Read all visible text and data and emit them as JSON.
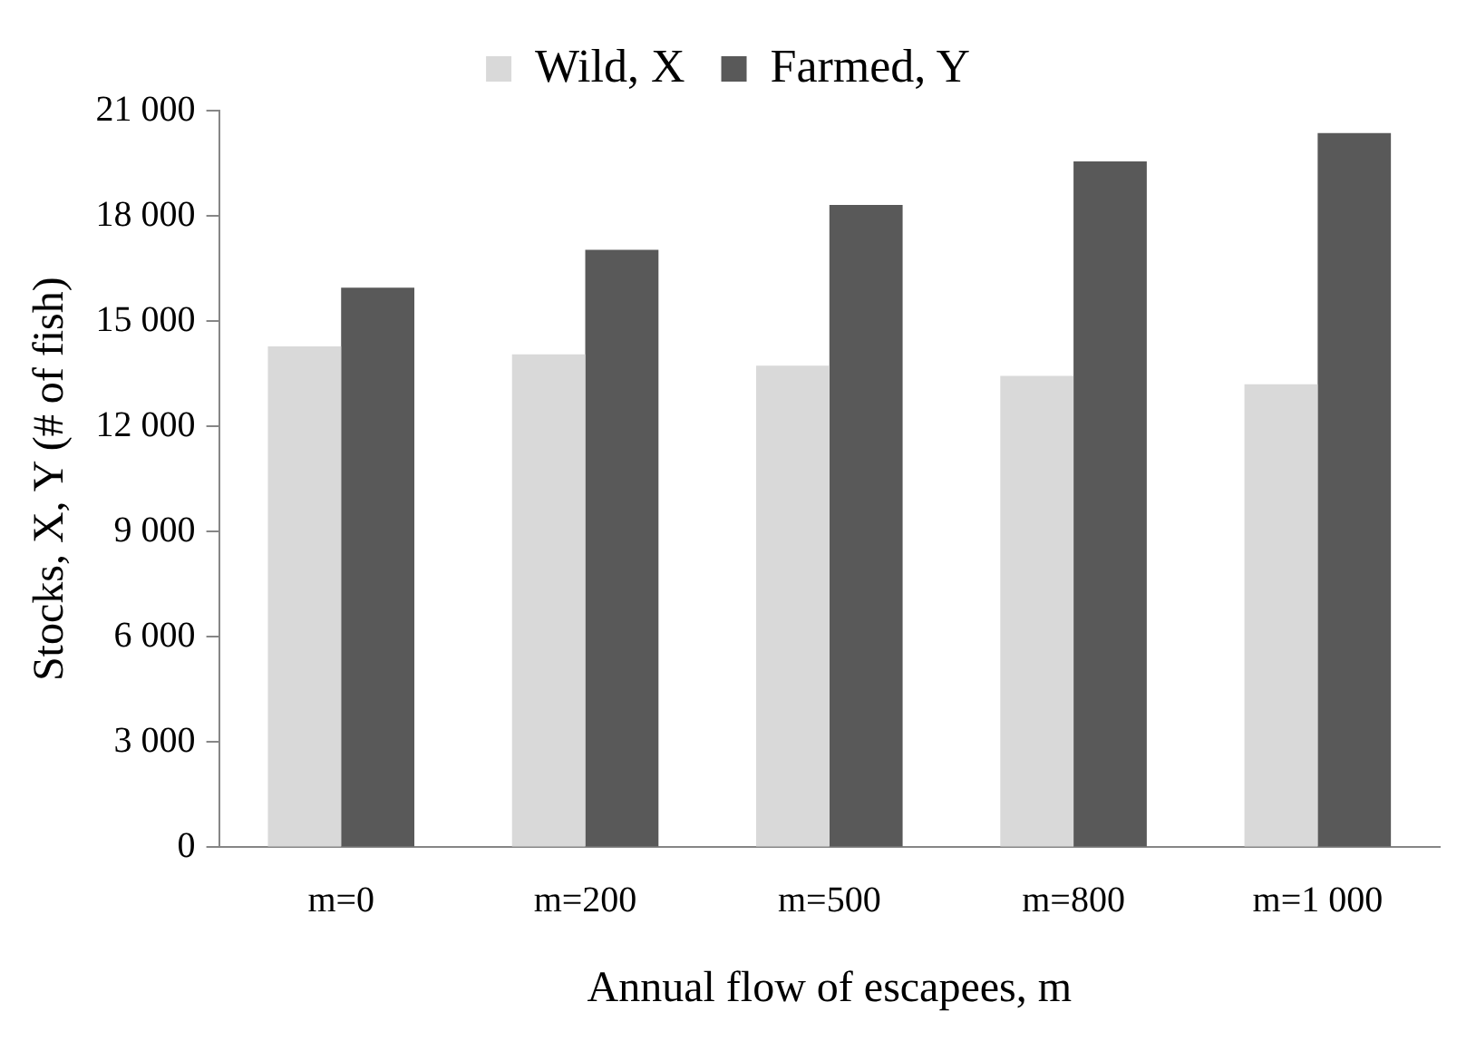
{
  "chart_data": {
    "type": "bar",
    "xlabel": "Annual flow of escapees, m",
    "ylabel": "Stocks, X, Y (# of fish)",
    "categories": [
      "m=0",
      "m=200",
      "m=500",
      "m=800",
      "m=1 000"
    ],
    "series": [
      {
        "name": "Wild, X",
        "color": "#d9d9d9",
        "values": [
          14280,
          14050,
          13730,
          13440,
          13200
        ]
      },
      {
        "name": "Farmed, Y",
        "color": "#595959",
        "values": [
          15950,
          17030,
          18310,
          19550,
          20360
        ]
      }
    ],
    "ylim": [
      0,
      21000
    ],
    "yticks": [
      0,
      {
        "value": 3000,
        "label": "3 000"
      },
      {
        "value": 6000,
        "label": "6 000"
      },
      {
        "value": 9000,
        "label": "9 000"
      },
      {
        "value": 12000,
        "label": "12 000"
      },
      {
        "value": 15000,
        "label": "15 000"
      },
      {
        "value": 18000,
        "label": "18 000"
      },
      {
        "value": 21000,
        "label": "21 000"
      }
    ],
    "grid": false,
    "legend": "top"
  }
}
